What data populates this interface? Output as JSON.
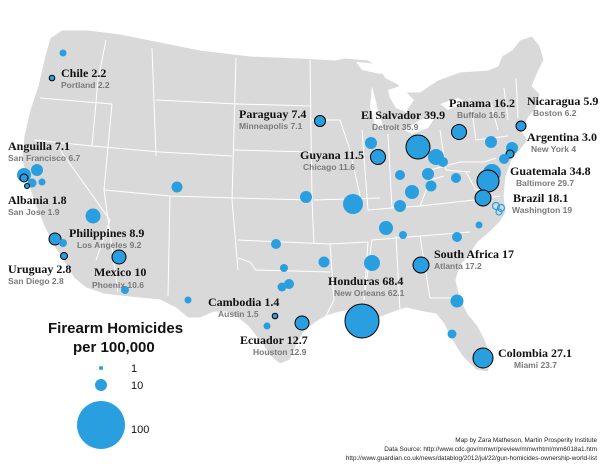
{
  "legend": {
    "title_line1": "Firearm Homicides",
    "title_line2": "per 100,000",
    "values": [
      "1",
      "10",
      "100"
    ]
  },
  "credits": {
    "line1": "Map by Zara Matheson, Martin Prosperity Institute",
    "line2": "Data Source: http://www.cdc.gov/mmwr/preview/mmwrhtml/mm6018a1.htm",
    "line3": "http://www.guardian.co.uk/news/datablog/2012/jul/22/gun-homicides-ownership-world-list"
  },
  "comparisons": [
    {
      "country": "Chile 2.2",
      "city": "Portland 2.2"
    },
    {
      "country": "Paraguay 7.4",
      "city": "Minneapolis 7.1"
    },
    {
      "country": "El Salvador 39.9",
      "city": "Detroit  35.9"
    },
    {
      "country": "Panama 16.2",
      "city": "Buffalo 16.5"
    },
    {
      "country": "Nicaragua 5.9",
      "city": "Boston 6.2"
    },
    {
      "country": "Argentina 3.0",
      "city": "New York 4"
    },
    {
      "country": "Anguilla 7.1",
      "city": "San Francisco 6.7"
    },
    {
      "country": "Guyana 11.5",
      "city": "Chicago 11.6"
    },
    {
      "country": "Guatemala 34.8",
      "city": "Baltimore 29.7"
    },
    {
      "country": "Albania 1.8",
      "city": "San Jose 1.9"
    },
    {
      "country": "Brazil 18.1",
      "city": "Washington 19"
    },
    {
      "country": "Philippines 8.9",
      "city": "Los Angeles 9.2"
    },
    {
      "country": "Uruguay  2.8",
      "city": "San Diego 2.8"
    },
    {
      "country": "Mexico 10",
      "city": "Phoenix 10.6"
    },
    {
      "country": "South Africa 17",
      "city": "Atlanta 17.2"
    },
    {
      "country": "Honduras 68.4",
      "city": "New Orleans 62.1"
    },
    {
      "country": "Cambodia 1.4",
      "city": "Austin 1.5"
    },
    {
      "country": "Ecuador 12.7",
      "city": "Houston 12.9"
    },
    {
      "country": "Colombia 27.1",
      "city": "Miami 23.7"
    }
  ],
  "colors": {
    "land": "#d9d9d9",
    "borders": "#ffffff",
    "bubble": "#2a9fe0",
    "ocean": "#ffffff"
  }
}
